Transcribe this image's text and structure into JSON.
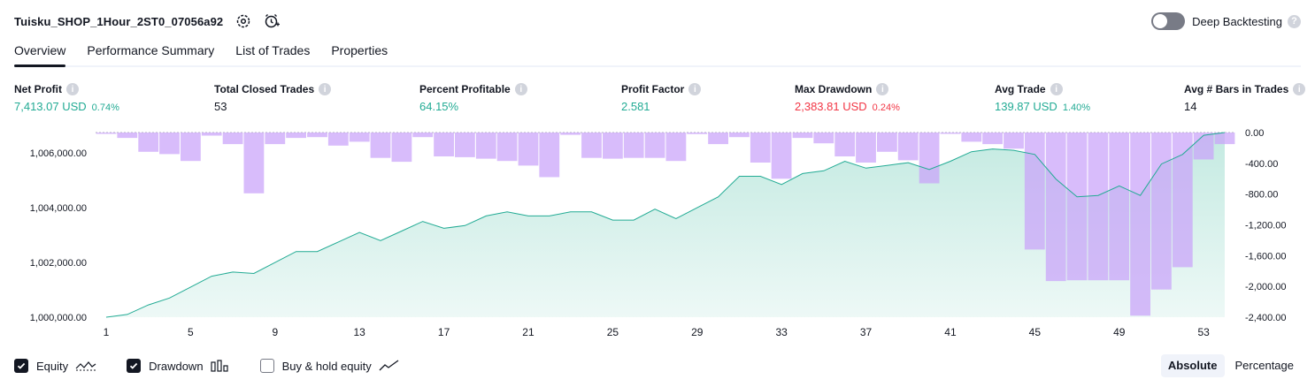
{
  "header": {
    "strategy_name": "Tuisku_SHOP_1Hour_2ST0_07056a92",
    "deep_backtesting_label": "Deep Backtesting",
    "deep_backtesting_enabled": false
  },
  "tabs": [
    {
      "label": "Overview",
      "active": true
    },
    {
      "label": "Performance Summary",
      "active": false
    },
    {
      "label": "List of Trades",
      "active": false
    },
    {
      "label": "Properties",
      "active": false
    }
  ],
  "stats": {
    "net_profit": {
      "label": "Net Profit",
      "value": "7,413.07 USD",
      "pct": "0.74%"
    },
    "total_closed_trades": {
      "label": "Total Closed Trades",
      "value": "53"
    },
    "percent_profitable": {
      "label": "Percent Profitable",
      "value": "64.15%"
    },
    "profit_factor": {
      "label": "Profit Factor",
      "value": "2.581"
    },
    "max_drawdown": {
      "label": "Max Drawdown",
      "value": "2,383.81 USD",
      "pct": "0.24%"
    },
    "avg_trade": {
      "label": "Avg Trade",
      "value": "139.87 USD",
      "pct": "1.40%"
    },
    "avg_bars": {
      "label": "Avg # Bars in Trades",
      "value": "14"
    }
  },
  "chart_data": {
    "type": "line",
    "x_ticks": [
      "1",
      "5",
      "9",
      "13",
      "17",
      "21",
      "25",
      "29",
      "33",
      "37",
      "41",
      "45",
      "49",
      "53"
    ],
    "left_axis": {
      "ticks": [
        "1,000,000.00",
        "1,002,000.00",
        "1,004,000.00",
        "1,006,000.00"
      ],
      "range": [
        1000000,
        1006750
      ]
    },
    "right_axis": {
      "ticks": [
        "0.00",
        "-400.00",
        "-800.00",
        "-1,200.00",
        "-1,600.00",
        "-2,000.00",
        "-2,400.00"
      ],
      "range": [
        -2400,
        0
      ]
    },
    "x": [
      1,
      2,
      3,
      4,
      5,
      6,
      7,
      8,
      9,
      10,
      11,
      12,
      13,
      14,
      15,
      16,
      17,
      18,
      19,
      20,
      21,
      22,
      23,
      24,
      25,
      26,
      27,
      28,
      29,
      30,
      31,
      32,
      33,
      34,
      35,
      36,
      37,
      38,
      39,
      40,
      41,
      42,
      43,
      44,
      45,
      46,
      47,
      48,
      49,
      50,
      51,
      52,
      53,
      54
    ],
    "series": [
      {
        "name": "Equity",
        "values": [
          1000000,
          1000100,
          1000450,
          1000700,
          1001100,
          1001500,
          1001650,
          1001600,
          1002000,
          1002400,
          1002400,
          1002750,
          1003100,
          1002800,
          1003150,
          1003500,
          1003250,
          1003350,
          1003700,
          1003850,
          1003700,
          1003700,
          1003850,
          1003850,
          1003550,
          1003550,
          1003950,
          1003600,
          1004000,
          1004400,
          1005150,
          1005150,
          1004850,
          1005250,
          1005350,
          1005700,
          1005450,
          1005550,
          1005650,
          1005400,
          1005700,
          1006050,
          1006150,
          1006100,
          1005950,
          1005050,
          1004400,
          1004450,
          1004800,
          1004450,
          1005600,
          1005950,
          1006650,
          1007200
        ]
      },
      {
        "name": "Drawdown",
        "values": [
          0,
          -70,
          -250,
          -280,
          -370,
          -40,
          -150,
          -790,
          -150,
          -70,
          -60,
          -170,
          -120,
          -330,
          -380,
          -60,
          -310,
          -320,
          -340,
          -370,
          -430,
          -580,
          -30,
          -330,
          -340,
          -330,
          -330,
          -370,
          -20,
          -150,
          -60,
          -390,
          -600,
          -70,
          -140,
          -310,
          -390,
          -250,
          -360,
          -660,
          0,
          -120,
          -150,
          -210,
          -1520,
          -1930,
          -1920,
          -1920,
          -1920,
          -2380,
          -2040,
          -1750,
          -350,
          -150
        ]
      }
    ],
    "legend": [
      "Equity",
      "Drawdown",
      "Buy & hold equity"
    ],
    "colors": {
      "equity_line": "#22ab94",
      "equity_fill": "#b9e6dc",
      "drawdown": "#c9a2fa"
    }
  },
  "legend": {
    "equity": {
      "label": "Equity",
      "checked": true
    },
    "drawdown": {
      "label": "Drawdown",
      "checked": true
    },
    "buy_hold": {
      "label": "Buy & hold equity",
      "checked": false
    }
  },
  "modes": {
    "absolute": "Absolute",
    "percentage": "Percentage",
    "active": "absolute"
  }
}
